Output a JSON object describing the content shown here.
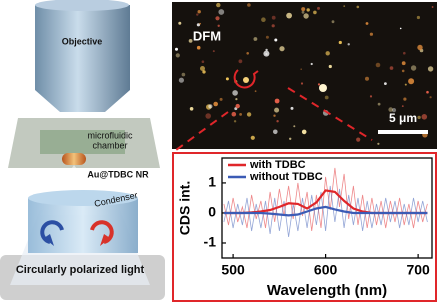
{
  "schematic": {
    "objective": "Objective",
    "chamber_line1": "microfluidic",
    "chamber_line2": "chamber",
    "particle": "Au@TDBC NR",
    "condenser": "Condenser",
    "light": "Circularly polarized light"
  },
  "dfm_image": {
    "label": "DFM",
    "scale_bar": "5 μm"
  },
  "chart_data": {
    "type": "line",
    "xlabel": "Wavelength (nm)",
    "ylabel": "CDS int.",
    "xlim": [
      488,
      715
    ],
    "ylim": [
      -1.5,
      1.83
    ],
    "xticks": [
      500,
      600,
      700
    ],
    "yticks": [
      -1,
      0,
      1
    ],
    "x": [
      490,
      495,
      500,
      505,
      510,
      515,
      520,
      525,
      530,
      535,
      540,
      545,
      550,
      555,
      560,
      565,
      570,
      575,
      580,
      585,
      590,
      595,
      600,
      605,
      610,
      615,
      620,
      625,
      630,
      635,
      640,
      645,
      650,
      655,
      660,
      665,
      670,
      675,
      680,
      685,
      690,
      695,
      700,
      705,
      710
    ],
    "fit_x": [
      490,
      500,
      510,
      520,
      530,
      540,
      550,
      560,
      570,
      580,
      590,
      600,
      610,
      620,
      630,
      640,
      650,
      660,
      670,
      680,
      690,
      700,
      710
    ],
    "series": [
      {
        "name": "with TDBC",
        "color": "#e0262a",
        "values": [
          0.3,
          -0.4,
          0.5,
          -0.3,
          0.2,
          -0.5,
          0.6,
          -0.2,
          0.4,
          -0.5,
          0.7,
          -0.3,
          0.8,
          -0.1,
          0.9,
          -0.2,
          1.0,
          -0.1,
          0.7,
          -0.6,
          0.6,
          -0.5,
          1.2,
          0.1,
          1.5,
          0.2,
          1.3,
          -0.2,
          0.9,
          -0.4,
          0.6,
          -0.5,
          0.5,
          -0.4,
          0.4,
          -0.5,
          0.4,
          -0.3,
          0.5,
          -0.4,
          0.3,
          -0.5,
          0.4,
          -0.3,
          0.3
        ],
        "fit_values": [
          0,
          0,
          0,
          0.02,
          0.05,
          0.1,
          0.2,
          0.32,
          0.3,
          0.15,
          0.35,
          0.75,
          0.7,
          0.4,
          0.15,
          0.05,
          0,
          0,
          0,
          0,
          0,
          0,
          0
        ]
      },
      {
        "name": "without TDBC",
        "color": "#3b5bb5",
        "values": [
          -0.3,
          0.4,
          -0.5,
          0.3,
          -0.4,
          0.5,
          -0.6,
          0.3,
          -0.5,
          0.4,
          -0.7,
          0.5,
          -0.6,
          0.4,
          -0.8,
          0.3,
          -0.6,
          0.5,
          -0.5,
          0.6,
          -0.4,
          0.7,
          -0.6,
          0.9,
          -0.3,
          0.8,
          -0.5,
          0.6,
          -0.4,
          0.5,
          -0.6,
          0.4,
          -0.5,
          0.3,
          -0.4,
          0.5,
          -0.3,
          0.4,
          -0.5,
          0.3,
          -0.4,
          0.5,
          -0.3,
          0.4,
          -0.3
        ],
        "fit_values": [
          0,
          0,
          0,
          0,
          0,
          -0.02,
          -0.05,
          -0.08,
          -0.05,
          0.05,
          0.15,
          0.2,
          0.12,
          0.05,
          0,
          0,
          0,
          0,
          0,
          0,
          0,
          0,
          0
        ]
      }
    ],
    "legend": "upper left"
  }
}
